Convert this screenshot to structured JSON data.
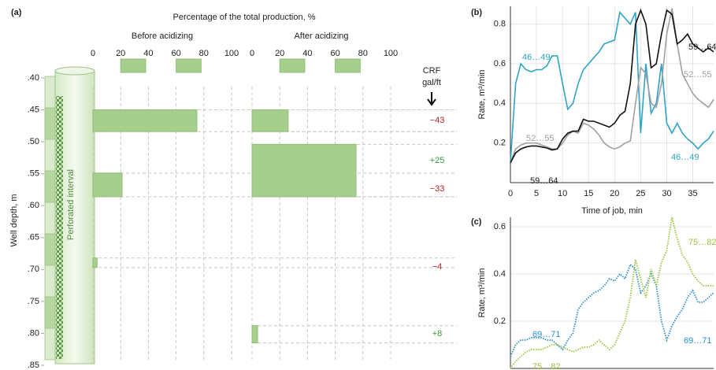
{
  "chart_data": [
    {
      "type": "hbar",
      "label": "(a)",
      "title": "Percentage of the total production, %",
      "y_label": "Well depth, m",
      "annotation": "Perforated interval",
      "xlim": [
        0,
        100
      ],
      "xticks": [
        0,
        20,
        40,
        60,
        80,
        100
      ],
      "ylim": [
        0.4,
        0.85
      ],
      "yticks": [
        {
          "value": 0.4,
          "label": ".40"
        },
        {
          "value": 0.45,
          "label": ".45"
        },
        {
          "value": 0.5,
          "label": ".50"
        },
        {
          "value": 0.55,
          "label": ".55"
        },
        {
          "value": 0.6,
          "label": ".60"
        },
        {
          "value": 0.65,
          "label": ".65"
        },
        {
          "value": 0.7,
          "label": ".70"
        },
        {
          "value": 0.75,
          "label": ".75"
        },
        {
          "value": 0.8,
          "label": ".80"
        },
        {
          "value": 0.85,
          "label": ".85"
        }
      ],
      "panels": [
        {
          "name": "Before acidizing",
          "color": "#a6cf8e",
          "bars": [
            {
              "top": 0.45,
              "bottom": 0.484,
              "value": 75
            },
            {
              "top": 0.549,
              "bottom": 0.586,
              "value": 21
            },
            {
              "top": 0.682,
              "bottom": 0.697,
              "value": 3
            }
          ]
        },
        {
          "name": "After acidizing",
          "color": "#a6cf8e",
          "bars": [
            {
              "top": 0.45,
              "bottom": 0.484,
              "value": 26
            },
            {
              "top": 0.504,
              "bottom": 0.586,
              "value": 75
            },
            {
              "top": 0.788,
              "bottom": 0.815,
              "value": 4
            }
          ]
        }
      ],
      "crf": {
        "title": "CRF",
        "unit": "gal/ft",
        "values": [
          -43,
          25,
          -33,
          -4,
          8
        ],
        "value_labels": [
          "−43",
          "+25",
          "−33",
          "−4",
          "+8"
        ],
        "colors": [
          "#b22222",
          "#3a9a3a",
          "#b22222",
          "#b22222",
          "#3a9a3a"
        ]
      }
    },
    {
      "type": "line",
      "label": "(b)",
      "x_label": "Time of job, min",
      "y_label": "Rate, m³/min",
      "xlim": [
        0,
        39
      ],
      "xticks": [
        0,
        5,
        10,
        15,
        20,
        25,
        30,
        35
      ],
      "ylim": [
        0,
        0.89
      ],
      "yticks": [
        0.2,
        0.4,
        0.6,
        0.8
      ],
      "grid": true,
      "line_style": "solid",
      "x": [
        0,
        1,
        2,
        3,
        4,
        5,
        6,
        7,
        8,
        9,
        10,
        11,
        12,
        13,
        14,
        15,
        16,
        17,
        18,
        19,
        20,
        21,
        22,
        23,
        24,
        25,
        26,
        27,
        28,
        29,
        30,
        31,
        32,
        33,
        34,
        35,
        36,
        37,
        38,
        39
      ],
      "series": [
        {
          "name": "46…49",
          "color": "#2ea3c7",
          "values": [
            0.1,
            0.5,
            0.6,
            0.57,
            0.56,
            0.57,
            0.57,
            0.59,
            0.64,
            0.64,
            0.5,
            0.37,
            0.4,
            0.5,
            0.57,
            0.6,
            0.63,
            0.66,
            0.7,
            0.71,
            0.72,
            0.86,
            0.83,
            0.8,
            0.86,
            0.25,
            0.6,
            0.35,
            0.4,
            0.6,
            0.3,
            0.25,
            0.3,
            0.25,
            0.22,
            0.2,
            0.17,
            0.2,
            0.22,
            0.26
          ]
        },
        {
          "name": "52…55",
          "color": "#a0a0a0",
          "values": [
            0.1,
            0.17,
            0.19,
            0.2,
            0.2,
            0.2,
            0.19,
            0.18,
            0.17,
            0.17,
            0.2,
            0.24,
            0.26,
            0.25,
            0.3,
            0.29,
            0.27,
            0.24,
            0.2,
            0.18,
            0.17,
            0.18,
            0.2,
            0.21,
            0.4,
            0.58,
            0.55,
            0.4,
            0.38,
            0.5,
            0.75,
            0.88,
            0.7,
            0.55,
            0.5,
            0.45,
            0.42,
            0.4,
            0.38,
            0.42
          ]
        },
        {
          "name": "59…64",
          "color": "#111111",
          "values": [
            0.1,
            0.15,
            0.17,
            0.18,
            0.185,
            0.185,
            0.18,
            0.175,
            0.165,
            0.17,
            0.22,
            0.25,
            0.26,
            0.26,
            0.32,
            0.31,
            0.31,
            0.3,
            0.29,
            0.28,
            0.3,
            0.34,
            0.36,
            0.5,
            0.8,
            0.87,
            0.8,
            0.58,
            0.6,
            0.75,
            0.87,
            0.85,
            0.7,
            0.72,
            0.75,
            0.7,
            0.68,
            0.66,
            0.68,
            0.66
          ]
        }
      ]
    },
    {
      "type": "line",
      "label": "(c)",
      "y_label": "Rate, m³/min",
      "xlim": [
        0,
        39
      ],
      "ylim": [
        0,
        0.64
      ],
      "yticks": [
        0.2,
        0.4,
        0.6
      ],
      "grid": true,
      "line_style": "dotted",
      "x": [
        0,
        1,
        2,
        3,
        4,
        5,
        6,
        7,
        8,
        9,
        10,
        11,
        12,
        13,
        14,
        15,
        16,
        17,
        18,
        19,
        20,
        21,
        22,
        23,
        24,
        25,
        26,
        27,
        28,
        29,
        30,
        31,
        32,
        33,
        34,
        35,
        36,
        37,
        38,
        39
      ],
      "series": [
        {
          "name": "69…71",
          "color": "#2a8fd0",
          "values": [
            0.05,
            0.1,
            0.12,
            0.12,
            0.13,
            0.13,
            0.13,
            0.12,
            0.12,
            0.1,
            0.08,
            0.12,
            0.15,
            0.25,
            0.28,
            0.3,
            0.32,
            0.33,
            0.35,
            0.38,
            0.37,
            0.4,
            0.38,
            0.44,
            0.42,
            0.32,
            0.35,
            0.4,
            0.35,
            0.2,
            0.12,
            0.18,
            0.22,
            0.25,
            0.3,
            0.33,
            0.28,
            0.28,
            0.3,
            0.32
          ]
        },
        {
          "name": "75…82",
          "color": "#9bc43c",
          "values": [
            0,
            0.03,
            0.05,
            0.07,
            0.08,
            0.08,
            0.08,
            0.09,
            0.1,
            0.1,
            0.09,
            0.08,
            0.07,
            0.08,
            0.09,
            0.09,
            0.1,
            0.12,
            0.1,
            0.08,
            0.1,
            0.15,
            0.2,
            0.3,
            0.46,
            0.38,
            0.3,
            0.42,
            0.35,
            0.45,
            0.5,
            0.64,
            0.55,
            0.48,
            0.45,
            0.4,
            0.37,
            0.35,
            0.35,
            0.35
          ]
        }
      ]
    }
  ]
}
